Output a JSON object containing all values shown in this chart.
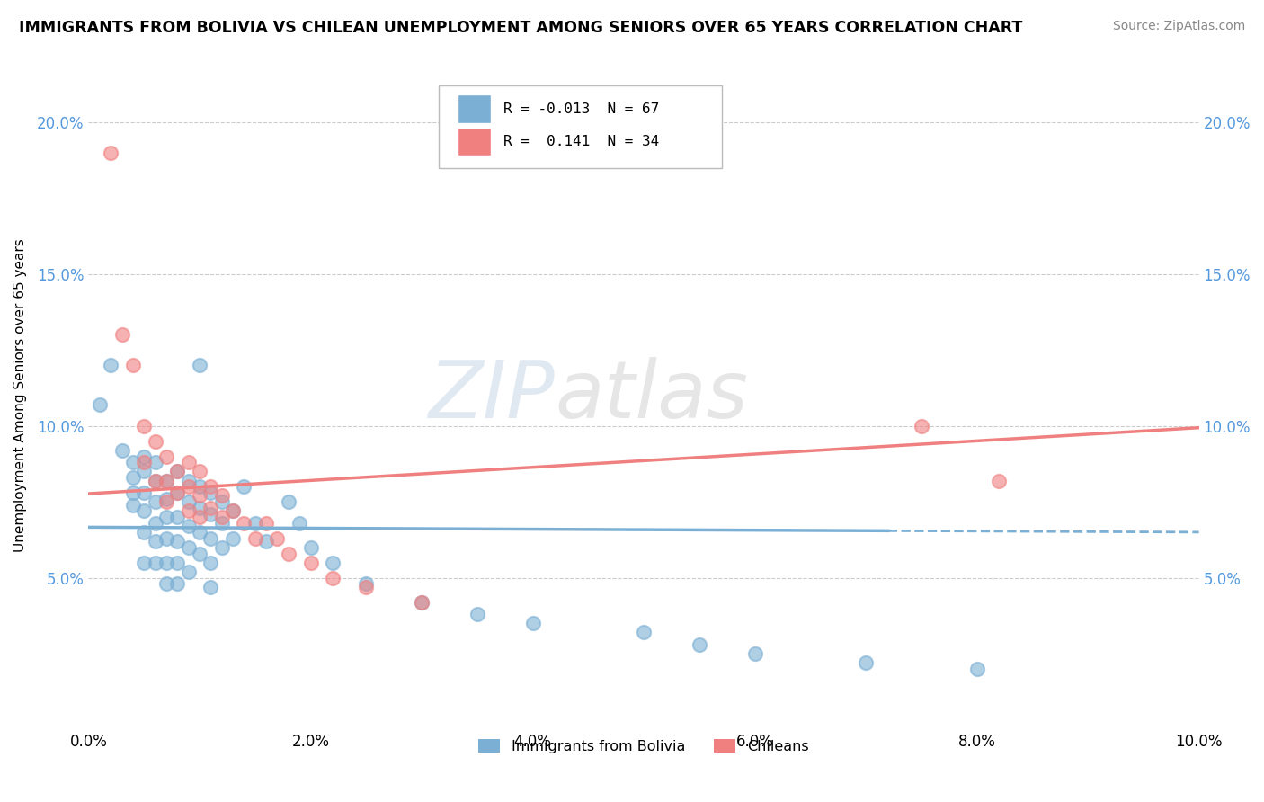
{
  "title": "IMMIGRANTS FROM BOLIVIA VS CHILEAN UNEMPLOYMENT AMONG SENIORS OVER 65 YEARS CORRELATION CHART",
  "source": "Source: ZipAtlas.com",
  "ylabel": "Unemployment Among Seniors over 65 years",
  "xlim": [
    0.0,
    0.1
  ],
  "ylim": [
    0.0,
    0.22
  ],
  "yticks": [
    0.05,
    0.1,
    0.15,
    0.2
  ],
  "ytick_labels": [
    "5.0%",
    "10.0%",
    "15.0%",
    "20.0%"
  ],
  "xticks": [
    0.0,
    0.02,
    0.04,
    0.06,
    0.08,
    0.1
  ],
  "xtick_labels": [
    "0.0%",
    "2.0%",
    "4.0%",
    "6.0%",
    "8.0%",
    "10.0%"
  ],
  "bolivia_color": "#7bafd4",
  "chilean_color": "#f08080",
  "bolivia_R": -0.013,
  "bolivia_N": 67,
  "chilean_R": 0.141,
  "chilean_N": 34,
  "watermark_zip": "ZIP",
  "watermark_atlas": "atlas",
  "bolivia_points": [
    [
      0.001,
      0.107
    ],
    [
      0.002,
      0.12
    ],
    [
      0.003,
      0.092
    ],
    [
      0.004,
      0.088
    ],
    [
      0.004,
      0.083
    ],
    [
      0.004,
      0.078
    ],
    [
      0.004,
      0.074
    ],
    [
      0.005,
      0.09
    ],
    [
      0.005,
      0.085
    ],
    [
      0.005,
      0.078
    ],
    [
      0.005,
      0.072
    ],
    [
      0.005,
      0.065
    ],
    [
      0.005,
      0.055
    ],
    [
      0.006,
      0.088
    ],
    [
      0.006,
      0.082
    ],
    [
      0.006,
      0.075
    ],
    [
      0.006,
      0.068
    ],
    [
      0.006,
      0.062
    ],
    [
      0.006,
      0.055
    ],
    [
      0.007,
      0.082
    ],
    [
      0.007,
      0.076
    ],
    [
      0.007,
      0.07
    ],
    [
      0.007,
      0.063
    ],
    [
      0.007,
      0.055
    ],
    [
      0.007,
      0.048
    ],
    [
      0.008,
      0.085
    ],
    [
      0.008,
      0.078
    ],
    [
      0.008,
      0.07
    ],
    [
      0.008,
      0.062
    ],
    [
      0.008,
      0.055
    ],
    [
      0.008,
      0.048
    ],
    [
      0.009,
      0.082
    ],
    [
      0.009,
      0.075
    ],
    [
      0.009,
      0.067
    ],
    [
      0.009,
      0.06
    ],
    [
      0.009,
      0.052
    ],
    [
      0.01,
      0.12
    ],
    [
      0.01,
      0.08
    ],
    [
      0.01,
      0.073
    ],
    [
      0.01,
      0.065
    ],
    [
      0.01,
      0.058
    ],
    [
      0.011,
      0.078
    ],
    [
      0.011,
      0.071
    ],
    [
      0.011,
      0.063
    ],
    [
      0.011,
      0.055
    ],
    [
      0.011,
      0.047
    ],
    [
      0.012,
      0.075
    ],
    [
      0.012,
      0.068
    ],
    [
      0.012,
      0.06
    ],
    [
      0.013,
      0.072
    ],
    [
      0.013,
      0.063
    ],
    [
      0.014,
      0.08
    ],
    [
      0.015,
      0.068
    ],
    [
      0.016,
      0.062
    ],
    [
      0.018,
      0.075
    ],
    [
      0.019,
      0.068
    ],
    [
      0.02,
      0.06
    ],
    [
      0.022,
      0.055
    ],
    [
      0.025,
      0.048
    ],
    [
      0.03,
      0.042
    ],
    [
      0.035,
      0.038
    ],
    [
      0.04,
      0.035
    ],
    [
      0.05,
      0.032
    ],
    [
      0.055,
      0.028
    ],
    [
      0.06,
      0.025
    ],
    [
      0.07,
      0.022
    ],
    [
      0.08,
      0.02
    ]
  ],
  "chilean_points": [
    [
      0.002,
      0.19
    ],
    [
      0.003,
      0.13
    ],
    [
      0.004,
      0.12
    ],
    [
      0.005,
      0.1
    ],
    [
      0.005,
      0.088
    ],
    [
      0.006,
      0.095
    ],
    [
      0.006,
      0.082
    ],
    [
      0.007,
      0.09
    ],
    [
      0.007,
      0.082
    ],
    [
      0.007,
      0.075
    ],
    [
      0.008,
      0.085
    ],
    [
      0.008,
      0.078
    ],
    [
      0.009,
      0.088
    ],
    [
      0.009,
      0.08
    ],
    [
      0.009,
      0.072
    ],
    [
      0.01,
      0.085
    ],
    [
      0.01,
      0.077
    ],
    [
      0.01,
      0.07
    ],
    [
      0.011,
      0.08
    ],
    [
      0.011,
      0.073
    ],
    [
      0.012,
      0.077
    ],
    [
      0.012,
      0.07
    ],
    [
      0.013,
      0.072
    ],
    [
      0.014,
      0.068
    ],
    [
      0.015,
      0.063
    ],
    [
      0.016,
      0.068
    ],
    [
      0.017,
      0.063
    ],
    [
      0.018,
      0.058
    ],
    [
      0.02,
      0.055
    ],
    [
      0.022,
      0.05
    ],
    [
      0.025,
      0.047
    ],
    [
      0.03,
      0.042
    ],
    [
      0.075,
      0.1
    ],
    [
      0.082,
      0.082
    ]
  ]
}
